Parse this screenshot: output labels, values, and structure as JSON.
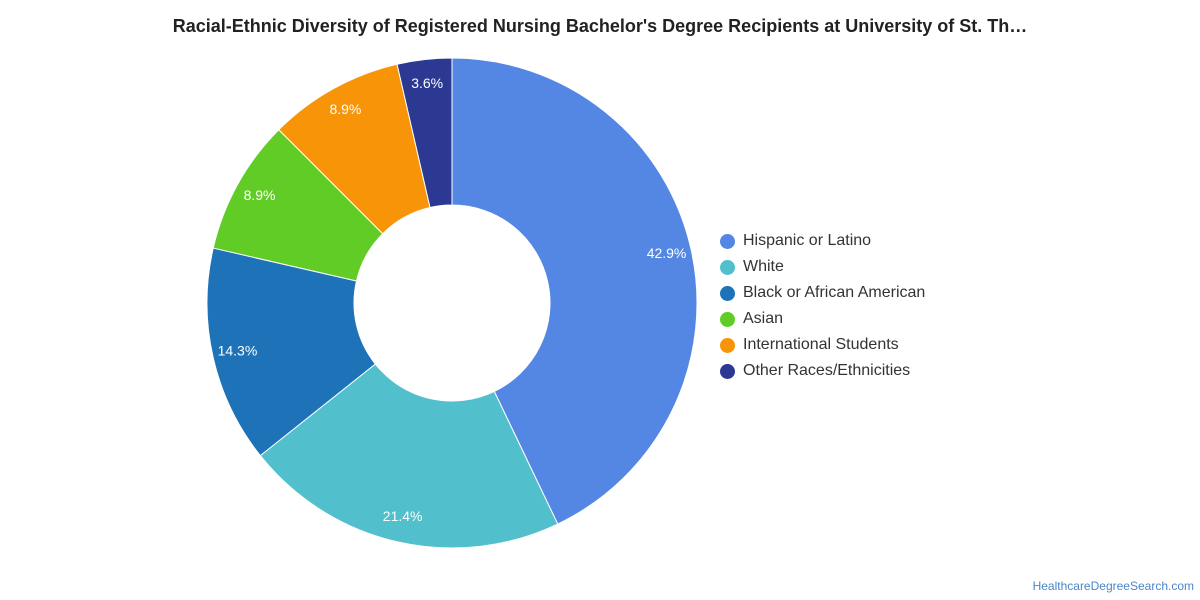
{
  "chart_title": "Racial-Ethnic Diversity of Registered Nursing Bachelor's Degree Recipients at University of St. Th…",
  "source": "HealthcareDegreeSearch.com",
  "chart_data": {
    "type": "pie",
    "donut": true,
    "legend_placement": "right",
    "title": "Racial-Ethnic Diversity of Registered Nursing Bachelor's Degree Recipients at University of St. Th…",
    "slices": [
      {
        "label": "Hispanic or Latino",
        "value": 42.9,
        "display": "42.9%",
        "color": "#5486e3"
      },
      {
        "label": "White",
        "value": 21.4,
        "display": "21.4%",
        "color": "#51c0cc"
      },
      {
        "label": "Black or African American",
        "value": 14.3,
        "display": "14.3%",
        "color": "#1d72b8"
      },
      {
        "label": "Asian",
        "value": 8.9,
        "display": "8.9%",
        "color": "#62cc27"
      },
      {
        "label": "International Students",
        "value": 8.9,
        "display": "8.9%",
        "color": "#f79408"
      },
      {
        "label": "Other Races/Ethnicities",
        "value": 3.6,
        "display": "3.6%",
        "color": "#2c3993"
      }
    ]
  }
}
